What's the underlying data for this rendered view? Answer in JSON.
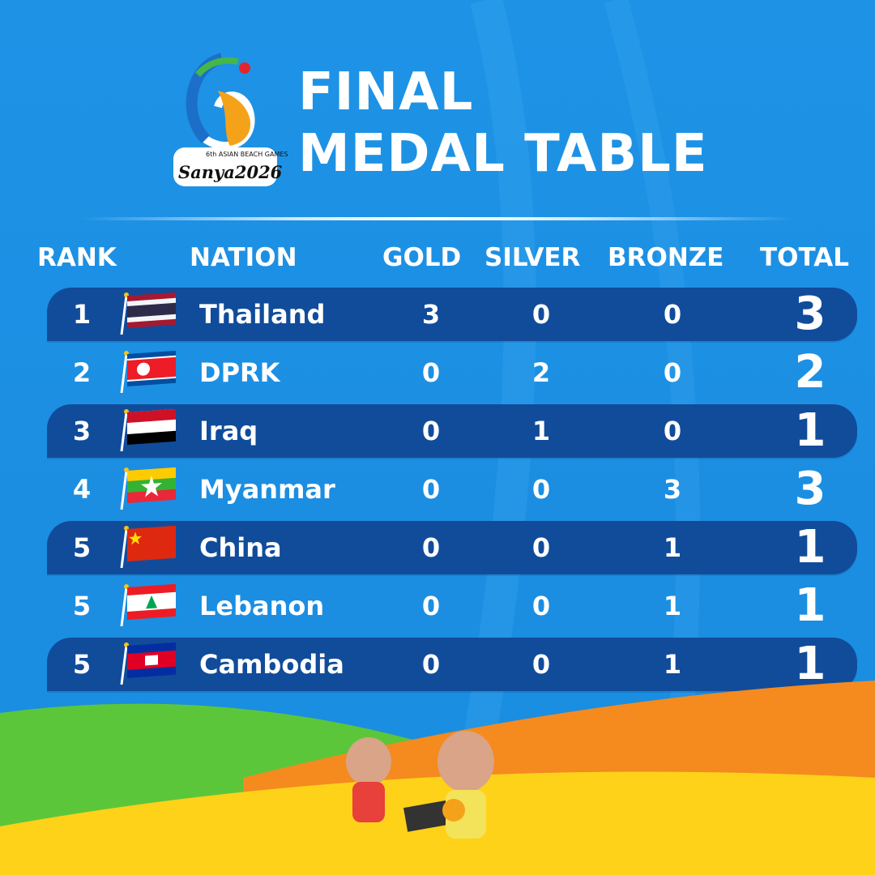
{
  "logo": {
    "subtitle": "6th ASIAN BEACH GAMES",
    "name": "Sanya2026"
  },
  "title": {
    "line1": "FINAL",
    "line2": "MEDAL TABLE"
  },
  "headers": {
    "rank": "RANK",
    "nation": "NATION",
    "gold": "GOLD",
    "silver": "SILVER",
    "bronze": "BRONZE",
    "total": "TOTAL"
  },
  "rows": [
    {
      "rank": "1",
      "nation": "Thailand",
      "flag": "thailand-flag",
      "gold": "3",
      "silver": "0",
      "bronze": "0",
      "total": "3"
    },
    {
      "rank": "2",
      "nation": "DPRK",
      "flag": "dprk-flag",
      "gold": "0",
      "silver": "2",
      "bronze": "0",
      "total": "2"
    },
    {
      "rank": "3",
      "nation": "Iraq",
      "flag": "iraq-flag",
      "gold": "0",
      "silver": "1",
      "bronze": "0",
      "total": "1"
    },
    {
      "rank": "4",
      "nation": "Myanmar",
      "flag": "myanmar-flag",
      "gold": "0",
      "silver": "0",
      "bronze": "3",
      "total": "3"
    },
    {
      "rank": "5",
      "nation": "China",
      "flag": "china-flag",
      "gold": "0",
      "silver": "0",
      "bronze": "1",
      "total": "1"
    },
    {
      "rank": "5",
      "nation": "Lebanon",
      "flag": "lebanon-flag",
      "gold": "0",
      "silver": "0",
      "bronze": "1",
      "total": "1"
    },
    {
      "rank": "5",
      "nation": "Cambodia",
      "flag": "cambodia-flag",
      "gold": "0",
      "silver": "0",
      "bronze": "1",
      "total": "1"
    }
  ],
  "colors": {
    "background": "#1b8ee2",
    "band": "#114c9b",
    "green": "#5cc63a",
    "orange": "#f58a1f",
    "yellow": "#ffd21a"
  }
}
